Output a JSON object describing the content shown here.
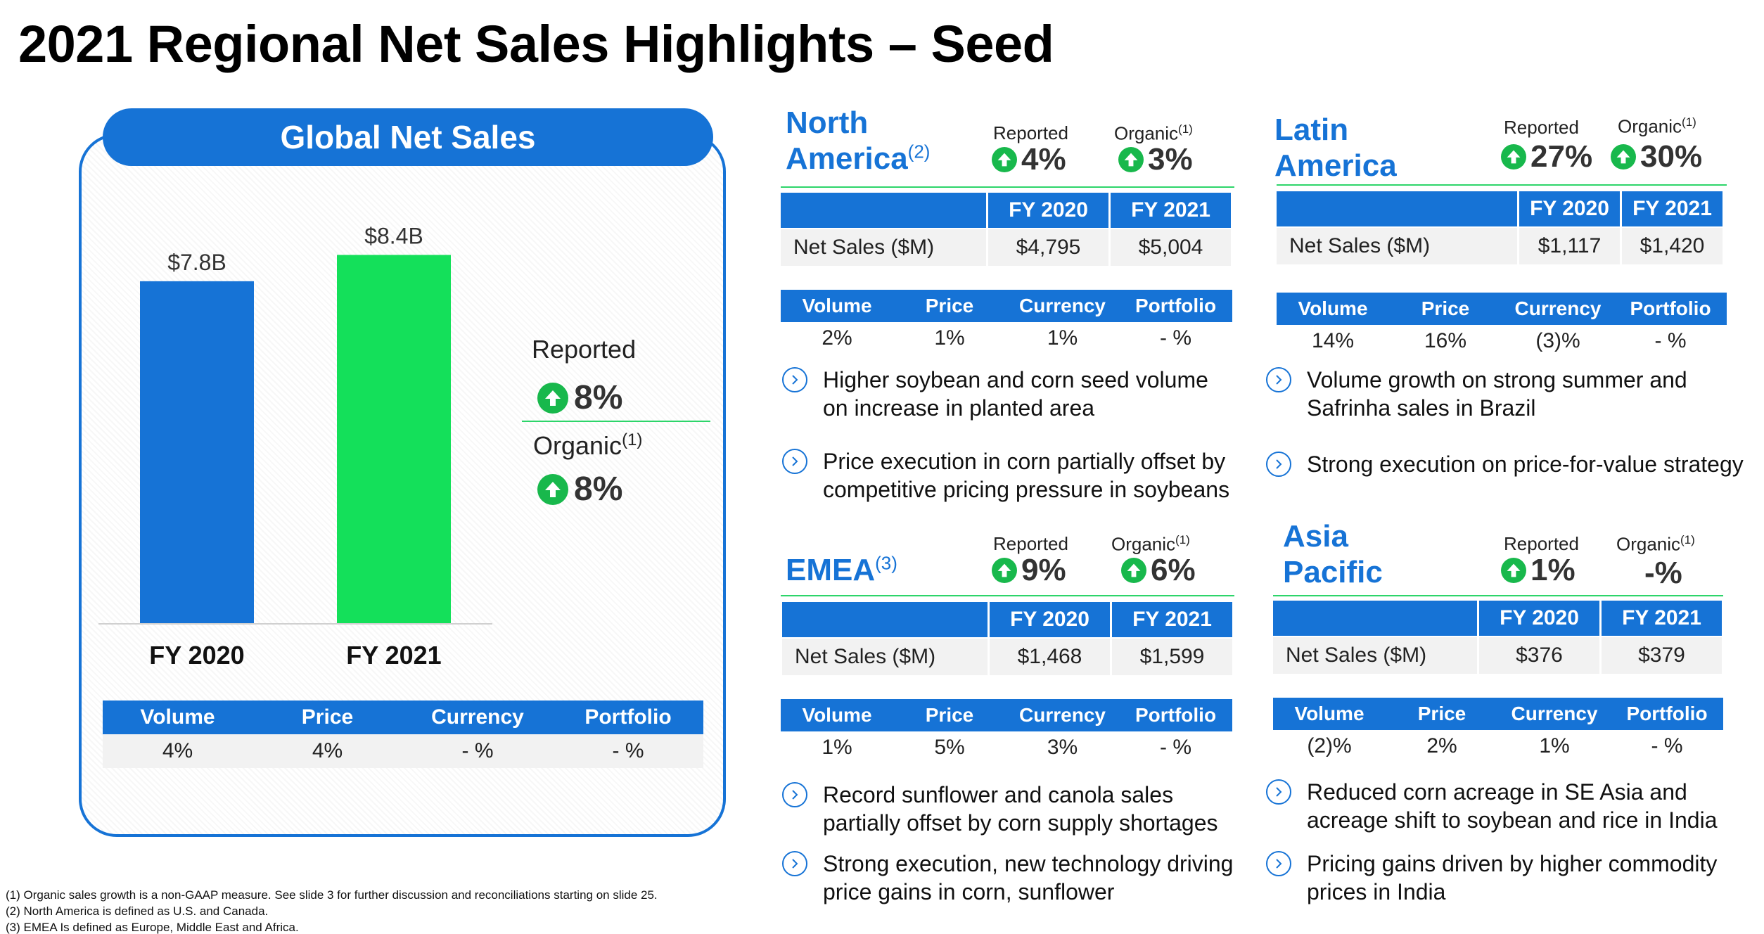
{
  "title": "2021 Regional Net Sales Highlights – Seed",
  "global": {
    "header": "Global Net Sales",
    "reported_label": "Reported",
    "reported_value": "8%",
    "organic_label": "Organic",
    "organic_sup": "(1)",
    "organic_value": "8%",
    "table": {
      "headers": [
        "Volume",
        "Price",
        "Currency",
        "Portfolio"
      ],
      "values": [
        "4%",
        "4%",
        "- %",
        "- %"
      ]
    }
  },
  "chart_data": {
    "type": "bar",
    "categories": [
      "FY 2020",
      "FY 2021"
    ],
    "values": [
      7.8,
      8.4
    ],
    "data_labels": [
      "$7.8B",
      "$8.4B"
    ],
    "colors": [
      "#1673d6",
      "#14e05a"
    ],
    "ylim": [
      0,
      8.6
    ]
  },
  "regions": {
    "north_america": {
      "name_line1": "North",
      "name_line2": "America",
      "name_sup": "(2)",
      "reported_label": "Reported",
      "reported_value": "4%",
      "organic_label": "Organic",
      "organic_sup": "(1)",
      "organic_value": "3%",
      "fy_headers": [
        "FY 2020",
        "FY 2021"
      ],
      "net_sales_label": "Net Sales ($M)",
      "net_sales": [
        "$4,795",
        "$5,004"
      ],
      "drivers_headers": [
        "Volume",
        "Price",
        "Currency",
        "Portfolio"
      ],
      "drivers_values": [
        "2%",
        "1%",
        "1%",
        "- %"
      ],
      "bullets": [
        "Higher soybean and corn seed volume on increase in planted area",
        "Price execution in corn partially offset by competitive pricing pressure in soybeans"
      ]
    },
    "latin_america": {
      "name_line1": "Latin",
      "name_line2": "America",
      "reported_label": "Reported",
      "reported_value": "27%",
      "organic_label": "Organic",
      "organic_sup": "(1)",
      "organic_value": "30%",
      "fy_headers": [
        "FY 2020",
        "FY 2021"
      ],
      "net_sales_label": "Net Sales ($M)",
      "net_sales": [
        "$1,117",
        "$1,420"
      ],
      "drivers_headers": [
        "Volume",
        "Price",
        "Currency",
        "Portfolio"
      ],
      "drivers_values": [
        "14%",
        "16%",
        "(3)%",
        "- %"
      ],
      "bullets": [
        "Volume growth on strong summer and Safrinha sales in Brazil",
        "Strong execution on price-for-value strategy"
      ]
    },
    "emea": {
      "name_line1": "EMEA",
      "name_sup": "(3)",
      "reported_label": "Reported",
      "reported_value": "9%",
      "organic_label": "Organic",
      "organic_sup": "(1)",
      "organic_value": "6%",
      "fy_headers": [
        "FY 2020",
        "FY 2021"
      ],
      "net_sales_label": "Net Sales ($M)",
      "net_sales": [
        "$1,468",
        "$1,599"
      ],
      "drivers_headers": [
        "Volume",
        "Price",
        "Currency",
        "Portfolio"
      ],
      "drivers_values": [
        "1%",
        "5%",
        "3%",
        "- %"
      ],
      "bullets": [
        "Record sunflower and canola sales partially offset by corn supply shortages",
        "Strong execution, new technology driving price gains in corn, sunflower"
      ]
    },
    "asia_pacific": {
      "name_line1": "Asia",
      "name_line2": "Pacific",
      "reported_label": "Reported",
      "reported_value": "1%",
      "organic_label": "Organic",
      "organic_sup": "(1)",
      "organic_value": "-%",
      "fy_headers": [
        "FY 2020",
        "FY 2021"
      ],
      "net_sales_label": "Net Sales ($M)",
      "net_sales": [
        "$376",
        "$379"
      ],
      "drivers_headers": [
        "Volume",
        "Price",
        "Currency",
        "Portfolio"
      ],
      "drivers_values": [
        "(2)%",
        "2%",
        "1%",
        "- %"
      ],
      "bullets": [
        "Reduced corn acreage in SE Asia and acreage shift to soybean and rice in India",
        "Pricing gains driven by higher commodity prices in India"
      ]
    }
  },
  "footnotes": [
    "(1) Organic sales growth is a non-GAAP measure. See slide 3 for further discussion and reconciliations starting on slide 25.",
    "(2) North America is defined as U.S. and Canada.",
    "(3) EMEA Is defined as Europe, Middle East and Africa."
  ],
  "icons": {
    "up": "up-arrow-circle-icon",
    "bullet": "chevron-right-circle-icon"
  }
}
